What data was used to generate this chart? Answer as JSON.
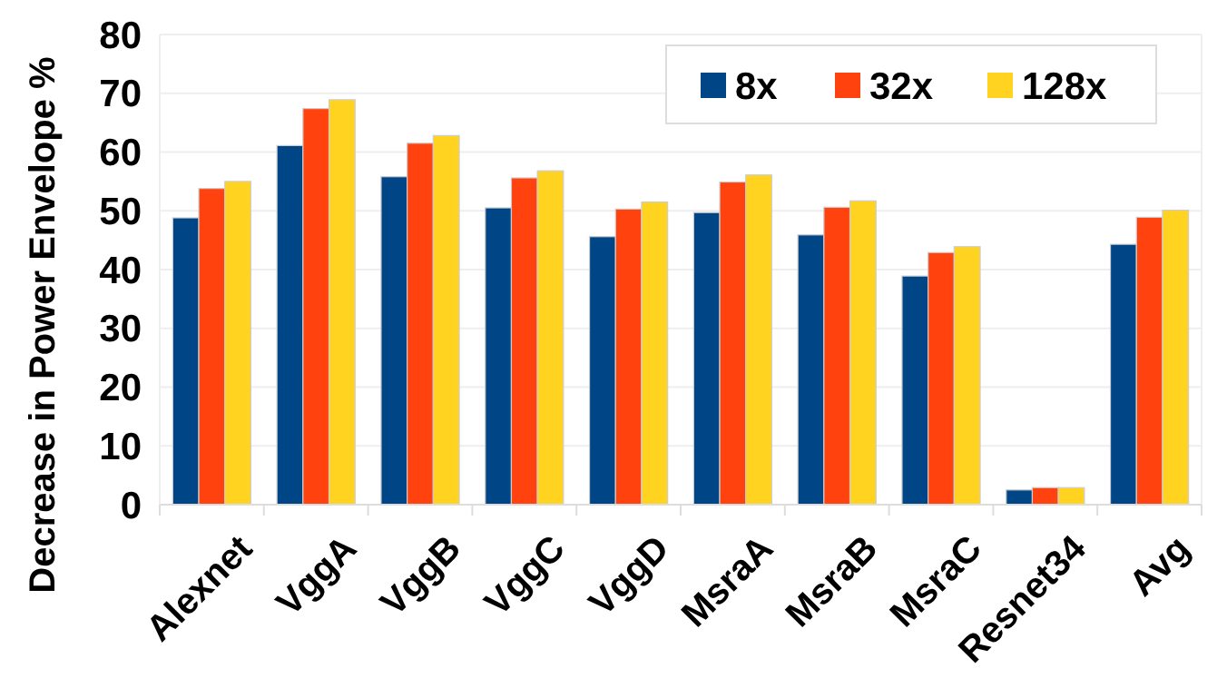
{
  "chart_data": {
    "type": "bar",
    "ylabel": "Decrease in Power Envelope %",
    "categories": [
      "Alexnet",
      "VggA",
      "VggB",
      "VggC",
      "VggD",
      "MsraA",
      "MsraB",
      "MsraC",
      "Resnet34",
      "Avg"
    ],
    "series": [
      {
        "name": "8x",
        "color": "#004586",
        "values": [
          48.8,
          61.1,
          55.8,
          50.5,
          45.6,
          49.7,
          45.9,
          38.9,
          2.5,
          44.3
        ]
      },
      {
        "name": "32x",
        "color": "#ff420e",
        "values": [
          53.8,
          67.4,
          61.5,
          55.6,
          50.3,
          54.9,
          50.6,
          42.9,
          2.9,
          48.9
        ]
      },
      {
        "name": "128x",
        "color": "#ffd320",
        "values": [
          55.0,
          68.9,
          62.8,
          56.8,
          51.5,
          56.1,
          51.7,
          43.9,
          2.9,
          50.1
        ]
      }
    ],
    "ylim": [
      0,
      80
    ],
    "yticks": [
      0,
      10,
      20,
      30,
      40,
      50,
      60,
      70,
      80
    ],
    "grid": "y",
    "legend": "top right"
  }
}
